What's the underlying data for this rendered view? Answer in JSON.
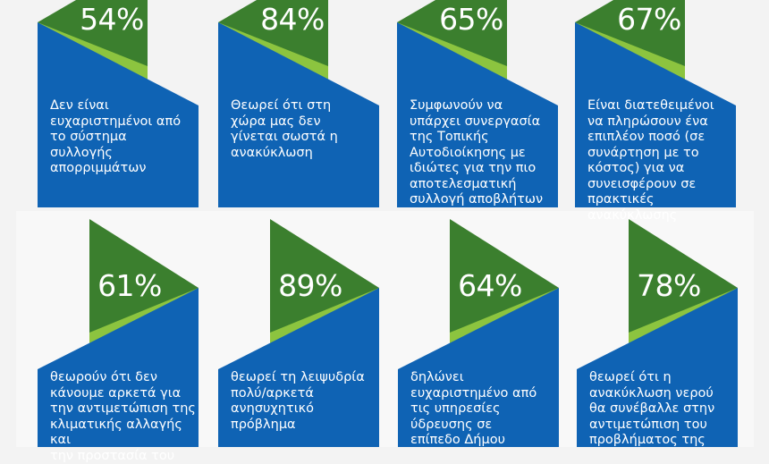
{
  "colors": {
    "blue": "#0f63b4",
    "green": "#3b7f2e",
    "light_green": "#8cc43f"
  },
  "top_row": [
    {
      "percent": "54%",
      "text": "Δεν είναι\nευχαριστημένοι από\nτο σύστημα\nσυλλογής\nαπορριμμάτων"
    },
    {
      "percent": "84%",
      "text": "Θεωρεί ότι στη\nχώρα μας δεν\nγίνεται σωστά η\nανακύκλωση"
    },
    {
      "percent": "65%",
      "text": "Συμφωνούν να\nυπάρχει συνεργασία\nτης Τοπικής\nΑυτοδιοίκησης με\nιδιώτες για την πιο\nαποτελεσματική\nσυλλογή αποβλήτων"
    },
    {
      "percent": "67%",
      "text": "Είναι διατεθειμένοι\nνα πληρώσουν ένα\nεπιπλέον ποσό (σε\nσυνάρτηση με το\nκόστος) για να\nσυνεισφέρουν σε\nπρακτικές ανακύκλωσης"
    }
  ],
  "bottom_row": [
    {
      "percent": "61%",
      "text": " θεωρούν ότι δεν\nκάνουμε αρκετά για\nτην αντιμετώπιση της\nκλιματικής αλλαγής και\nτην προστασία του"
    },
    {
      "percent": "89%",
      "text": "θεωρεί τη λειψυδρία\nπολύ/αρκετά\nανησυχητικό\nπρόβλημα"
    },
    {
      "percent": "64%",
      "text": "δηλώνει\nευχαριστημένο από\nτις υπηρεσίες\nύδρευσης σε\nεπίπεδο Δήμου"
    },
    {
      "percent": "78%",
      "text": " θεωρεί ότι η\nανακύκλωση νερού\nθα συνέβαλλε στην\nαντιμετώπιση του\nπροβλήματος της"
    }
  ]
}
